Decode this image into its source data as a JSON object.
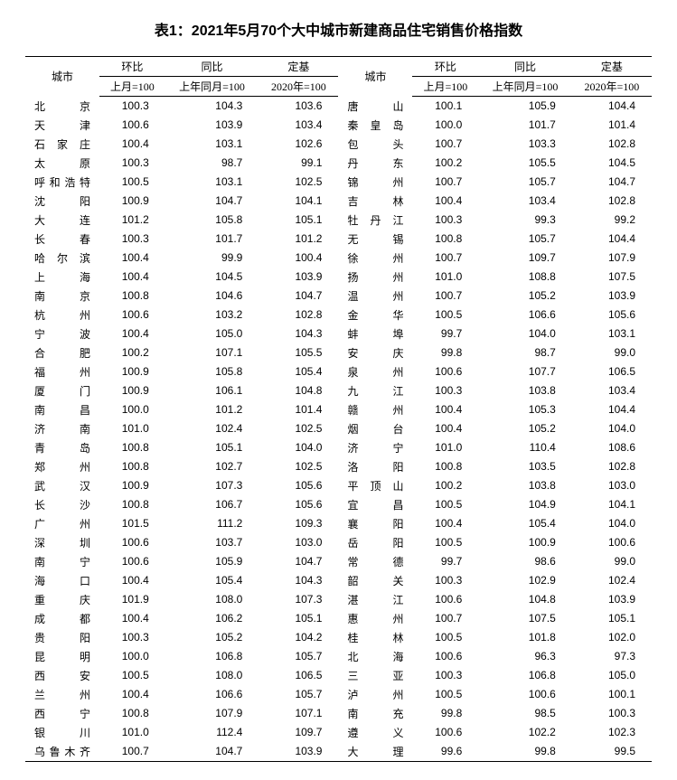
{
  "title": "表1：2021年5月70个大中城市新建商品住宅销售价格指数",
  "headers": {
    "city": "城市",
    "mom": "环比",
    "yoy": "同比",
    "base": "定基",
    "mom_sub": "上月=100",
    "yoy_sub": "上年同月=100",
    "base_sub": "2020年=100"
  },
  "rows": [
    {
      "lc": "北京",
      "l1": "100.3",
      "l2": "104.3",
      "l3": "103.6",
      "rc": "唐山",
      "r1": "100.1",
      "r2": "105.9",
      "r3": "104.4"
    },
    {
      "lc": "天津",
      "l1": "100.6",
      "l2": "103.9",
      "l3": "103.4",
      "rc": "秦皇岛",
      "r1": "100.0",
      "r2": "101.7",
      "r3": "101.4"
    },
    {
      "lc": "石家庄",
      "l1": "100.4",
      "l2": "103.1",
      "l3": "102.6",
      "rc": "包头",
      "r1": "100.7",
      "r2": "103.3",
      "r3": "102.8"
    },
    {
      "lc": "太原",
      "l1": "100.3",
      "l2": "98.7",
      "l3": "99.1",
      "rc": "丹东",
      "r1": "100.2",
      "r2": "105.5",
      "r3": "104.5"
    },
    {
      "lc": "呼和浩特",
      "l1": "100.5",
      "l2": "103.1",
      "l3": "102.5",
      "rc": "锦州",
      "r1": "100.7",
      "r2": "105.7",
      "r3": "104.7"
    },
    {
      "lc": "沈阳",
      "l1": "100.9",
      "l2": "104.7",
      "l3": "104.1",
      "rc": "吉林",
      "r1": "100.4",
      "r2": "103.4",
      "r3": "102.8"
    },
    {
      "lc": "大连",
      "l1": "101.2",
      "l2": "105.8",
      "l3": "105.1",
      "rc": "牡丹江",
      "r1": "100.3",
      "r2": "99.3",
      "r3": "99.2"
    },
    {
      "lc": "长春",
      "l1": "100.3",
      "l2": "101.7",
      "l3": "101.2",
      "rc": "无锡",
      "r1": "100.8",
      "r2": "105.7",
      "r3": "104.4"
    },
    {
      "lc": "哈尔滨",
      "l1": "100.4",
      "l2": "99.9",
      "l3": "100.4",
      "rc": "徐州",
      "r1": "100.7",
      "r2": "109.7",
      "r3": "107.9"
    },
    {
      "lc": "上海",
      "l1": "100.4",
      "l2": "104.5",
      "l3": "103.9",
      "rc": "扬州",
      "r1": "101.0",
      "r2": "108.8",
      "r3": "107.5"
    },
    {
      "lc": "南京",
      "l1": "100.8",
      "l2": "104.6",
      "l3": "104.7",
      "rc": "温州",
      "r1": "100.7",
      "r2": "105.2",
      "r3": "103.9"
    },
    {
      "lc": "杭州",
      "l1": "100.6",
      "l2": "103.2",
      "l3": "102.8",
      "rc": "金华",
      "r1": "100.5",
      "r2": "106.6",
      "r3": "105.6"
    },
    {
      "lc": "宁波",
      "l1": "100.4",
      "l2": "105.0",
      "l3": "104.3",
      "rc": "蚌埠",
      "r1": "99.7",
      "r2": "104.0",
      "r3": "103.1"
    },
    {
      "lc": "合肥",
      "l1": "100.2",
      "l2": "107.1",
      "l3": "105.5",
      "rc": "安庆",
      "r1": "99.8",
      "r2": "98.7",
      "r3": "99.0"
    },
    {
      "lc": "福州",
      "l1": "100.9",
      "l2": "105.8",
      "l3": "105.4",
      "rc": "泉州",
      "r1": "100.6",
      "r2": "107.7",
      "r3": "106.5"
    },
    {
      "lc": "厦门",
      "l1": "100.9",
      "l2": "106.1",
      "l3": "104.8",
      "rc": "九江",
      "r1": "100.3",
      "r2": "103.8",
      "r3": "103.4"
    },
    {
      "lc": "南昌",
      "l1": "100.0",
      "l2": "101.2",
      "l3": "101.4",
      "rc": "赣州",
      "r1": "100.4",
      "r2": "105.3",
      "r3": "104.4"
    },
    {
      "lc": "济南",
      "l1": "101.0",
      "l2": "102.4",
      "l3": "102.5",
      "rc": "烟台",
      "r1": "100.4",
      "r2": "105.2",
      "r3": "104.0"
    },
    {
      "lc": "青岛",
      "l1": "100.8",
      "l2": "105.1",
      "l3": "104.0",
      "rc": "济宁",
      "r1": "101.0",
      "r2": "110.4",
      "r3": "108.6"
    },
    {
      "lc": "郑州",
      "l1": "100.8",
      "l2": "102.7",
      "l3": "102.5",
      "rc": "洛阳",
      "r1": "100.8",
      "r2": "103.5",
      "r3": "102.8"
    },
    {
      "lc": "武汉",
      "l1": "100.9",
      "l2": "107.3",
      "l3": "105.6",
      "rc": "平顶山",
      "r1": "100.2",
      "r2": "103.8",
      "r3": "103.0"
    },
    {
      "lc": "长沙",
      "l1": "100.8",
      "l2": "106.7",
      "l3": "105.6",
      "rc": "宜昌",
      "r1": "100.5",
      "r2": "104.9",
      "r3": "104.1"
    },
    {
      "lc": "广州",
      "l1": "101.5",
      "l2": "111.2",
      "l3": "109.3",
      "rc": "襄阳",
      "r1": "100.4",
      "r2": "105.4",
      "r3": "104.0"
    },
    {
      "lc": "深圳",
      "l1": "100.6",
      "l2": "103.7",
      "l3": "103.0",
      "rc": "岳阳",
      "r1": "100.5",
      "r2": "100.9",
      "r3": "100.6"
    },
    {
      "lc": "南宁",
      "l1": "100.6",
      "l2": "105.9",
      "l3": "104.7",
      "rc": "常德",
      "r1": "99.7",
      "r2": "98.6",
      "r3": "99.0"
    },
    {
      "lc": "海口",
      "l1": "100.4",
      "l2": "105.4",
      "l3": "104.3",
      "rc": "韶关",
      "r1": "100.3",
      "r2": "102.9",
      "r3": "102.4"
    },
    {
      "lc": "重庆",
      "l1": "101.9",
      "l2": "108.0",
      "l3": "107.3",
      "rc": "湛江",
      "r1": "100.6",
      "r2": "104.8",
      "r3": "103.9"
    },
    {
      "lc": "成都",
      "l1": "100.4",
      "l2": "106.2",
      "l3": "105.1",
      "rc": "惠州",
      "r1": "100.7",
      "r2": "107.5",
      "r3": "105.1"
    },
    {
      "lc": "贵阳",
      "l1": "100.3",
      "l2": "105.2",
      "l3": "104.2",
      "rc": "桂林",
      "r1": "100.5",
      "r2": "101.8",
      "r3": "102.0"
    },
    {
      "lc": "昆明",
      "l1": "100.0",
      "l2": "106.8",
      "l3": "105.7",
      "rc": "北海",
      "r1": "100.6",
      "r2": "96.3",
      "r3": "97.3"
    },
    {
      "lc": "西安",
      "l1": "100.5",
      "l2": "108.0",
      "l3": "106.5",
      "rc": "三亚",
      "r1": "100.3",
      "r2": "106.8",
      "r3": "105.0"
    },
    {
      "lc": "兰州",
      "l1": "100.4",
      "l2": "106.6",
      "l3": "105.7",
      "rc": "泸州",
      "r1": "100.5",
      "r2": "100.6",
      "r3": "100.1"
    },
    {
      "lc": "西宁",
      "l1": "100.8",
      "l2": "107.9",
      "l3": "107.1",
      "rc": "南充",
      "r1": "99.8",
      "r2": "98.5",
      "r3": "100.3"
    },
    {
      "lc": "银川",
      "l1": "101.0",
      "l2": "112.4",
      "l3": "109.7",
      "rc": "遵义",
      "r1": "100.6",
      "r2": "102.2",
      "r3": "102.3"
    },
    {
      "lc": "乌鲁木齐",
      "l1": "100.7",
      "l2": "104.7",
      "l3": "103.9",
      "rc": "大理",
      "r1": "99.6",
      "r2": "99.8",
      "r3": "99.5"
    }
  ]
}
